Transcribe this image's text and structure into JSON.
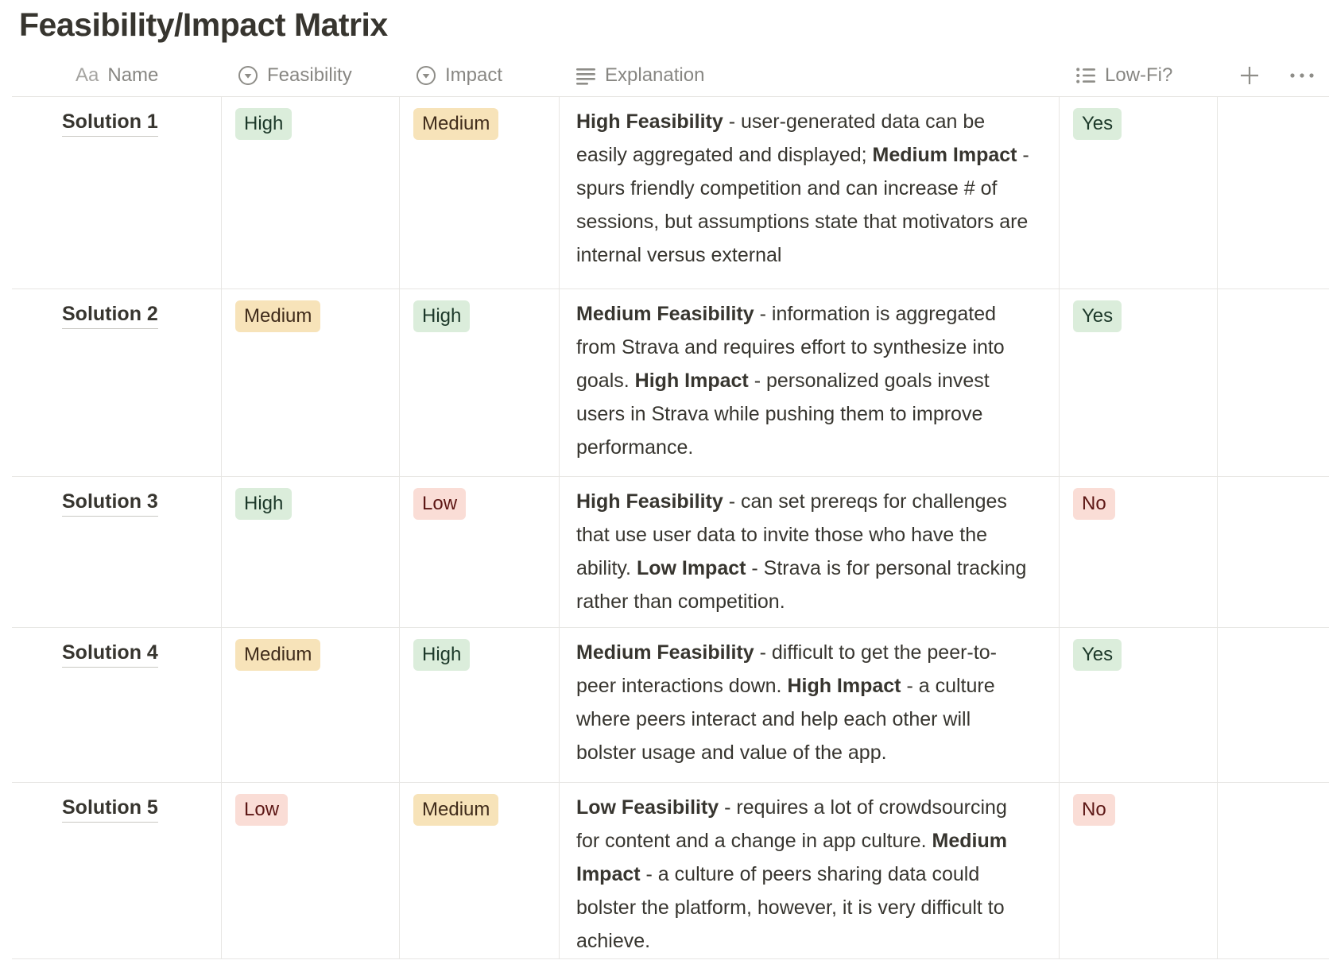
{
  "page": {
    "title": "Feasibility/Impact Matrix"
  },
  "table": {
    "columns": [
      {
        "id": "name",
        "label": "Name",
        "icon": "text-style-aa-icon"
      },
      {
        "id": "feasibility",
        "label": "Feasibility",
        "icon": "select-chevron-circle-icon"
      },
      {
        "id": "impact",
        "label": "Impact",
        "icon": "select-chevron-circle-icon"
      },
      {
        "id": "explanation",
        "label": "Explanation",
        "icon": "text-lines-icon"
      },
      {
        "id": "lowfi",
        "label": "Low-Fi?",
        "icon": "bulleted-list-icon"
      }
    ],
    "toolbar": {
      "add_column": "plus-icon",
      "more_options": "ellipsis-icon"
    },
    "tag_colors": {
      "green": {
        "bg": "#DBEDDB",
        "text": "#1C3829"
      },
      "yellow": {
        "bg": "#F7E3B9",
        "text": "#402C1B"
      },
      "red": {
        "bg": "#FADDD6",
        "text": "#5D1715"
      }
    },
    "border_color": "#E7E6E3",
    "header_text_color": "#8E8D88",
    "body_text_color": "#37352F",
    "rows": [
      {
        "name": "Solution 1",
        "feasibility": {
          "label": "High",
          "color": "green"
        },
        "impact": {
          "label": "Medium",
          "color": "yellow"
        },
        "lowfi": {
          "label": "Yes",
          "color": "green"
        },
        "explanation": [
          {
            "bold": true,
            "text": "High Feasibility"
          },
          {
            "bold": false,
            "text": " - user-generated data can be easily aggregated and displayed; "
          },
          {
            "bold": true,
            "text": "Medium Impact"
          },
          {
            "bold": false,
            "text": " - spurs friendly competition and can increase # of sessions, but assumptions state that motivators are internal versus external"
          }
        ]
      },
      {
        "name": "Solution 2",
        "feasibility": {
          "label": "Medium",
          "color": "yellow"
        },
        "impact": {
          "label": "High",
          "color": "green"
        },
        "lowfi": {
          "label": "Yes",
          "color": "green"
        },
        "explanation": [
          {
            "bold": true,
            "text": "Medium Feasibility"
          },
          {
            "bold": false,
            "text": " - information is aggregated from Strava and requires effort to synthesize into goals. "
          },
          {
            "bold": true,
            "text": "High Impact"
          },
          {
            "bold": false,
            "text": " - personalized goals invest users in Strava while pushing them to improve performance."
          }
        ]
      },
      {
        "name": "Solution 3",
        "feasibility": {
          "label": "High",
          "color": "green"
        },
        "impact": {
          "label": "Low",
          "color": "red"
        },
        "lowfi": {
          "label": "No",
          "color": "red"
        },
        "explanation": [
          {
            "bold": true,
            "text": "High Feasibility"
          },
          {
            "bold": false,
            "text": " - can set prereqs for challenges that use user data to invite those who have the ability. "
          },
          {
            "bold": true,
            "text": "Low Impact"
          },
          {
            "bold": false,
            "text": " - Strava is for personal tracking rather than competition."
          }
        ]
      },
      {
        "name": "Solution 4",
        "feasibility": {
          "label": "Medium",
          "color": "yellow"
        },
        "impact": {
          "label": "High",
          "color": "green"
        },
        "lowfi": {
          "label": "Yes",
          "color": "green"
        },
        "explanation": [
          {
            "bold": true,
            "text": "Medium Feasibility"
          },
          {
            "bold": false,
            "text": " - difficult to get the peer-to-peer interactions down. "
          },
          {
            "bold": true,
            "text": "High Impact "
          },
          {
            "bold": false,
            "text": " - a culture where peers interact and help each other will bolster usage and value of the app."
          }
        ]
      },
      {
        "name": "Solution 5",
        "feasibility": {
          "label": "Low",
          "color": "red"
        },
        "impact": {
          "label": "Medium",
          "color": "yellow"
        },
        "lowfi": {
          "label": "No",
          "color": "red"
        },
        "explanation": [
          {
            "bold": true,
            "text": "Low Feasibility"
          },
          {
            "bold": false,
            "text": " - requires a lot of crowdsourcing for content and a change in app culture. "
          },
          {
            "bold": true,
            "text": "Medium Impact"
          },
          {
            "bold": false,
            "text": " - a culture of peers sharing data could bolster the platform, however, it is very difficult to achieve."
          }
        ]
      }
    ]
  }
}
